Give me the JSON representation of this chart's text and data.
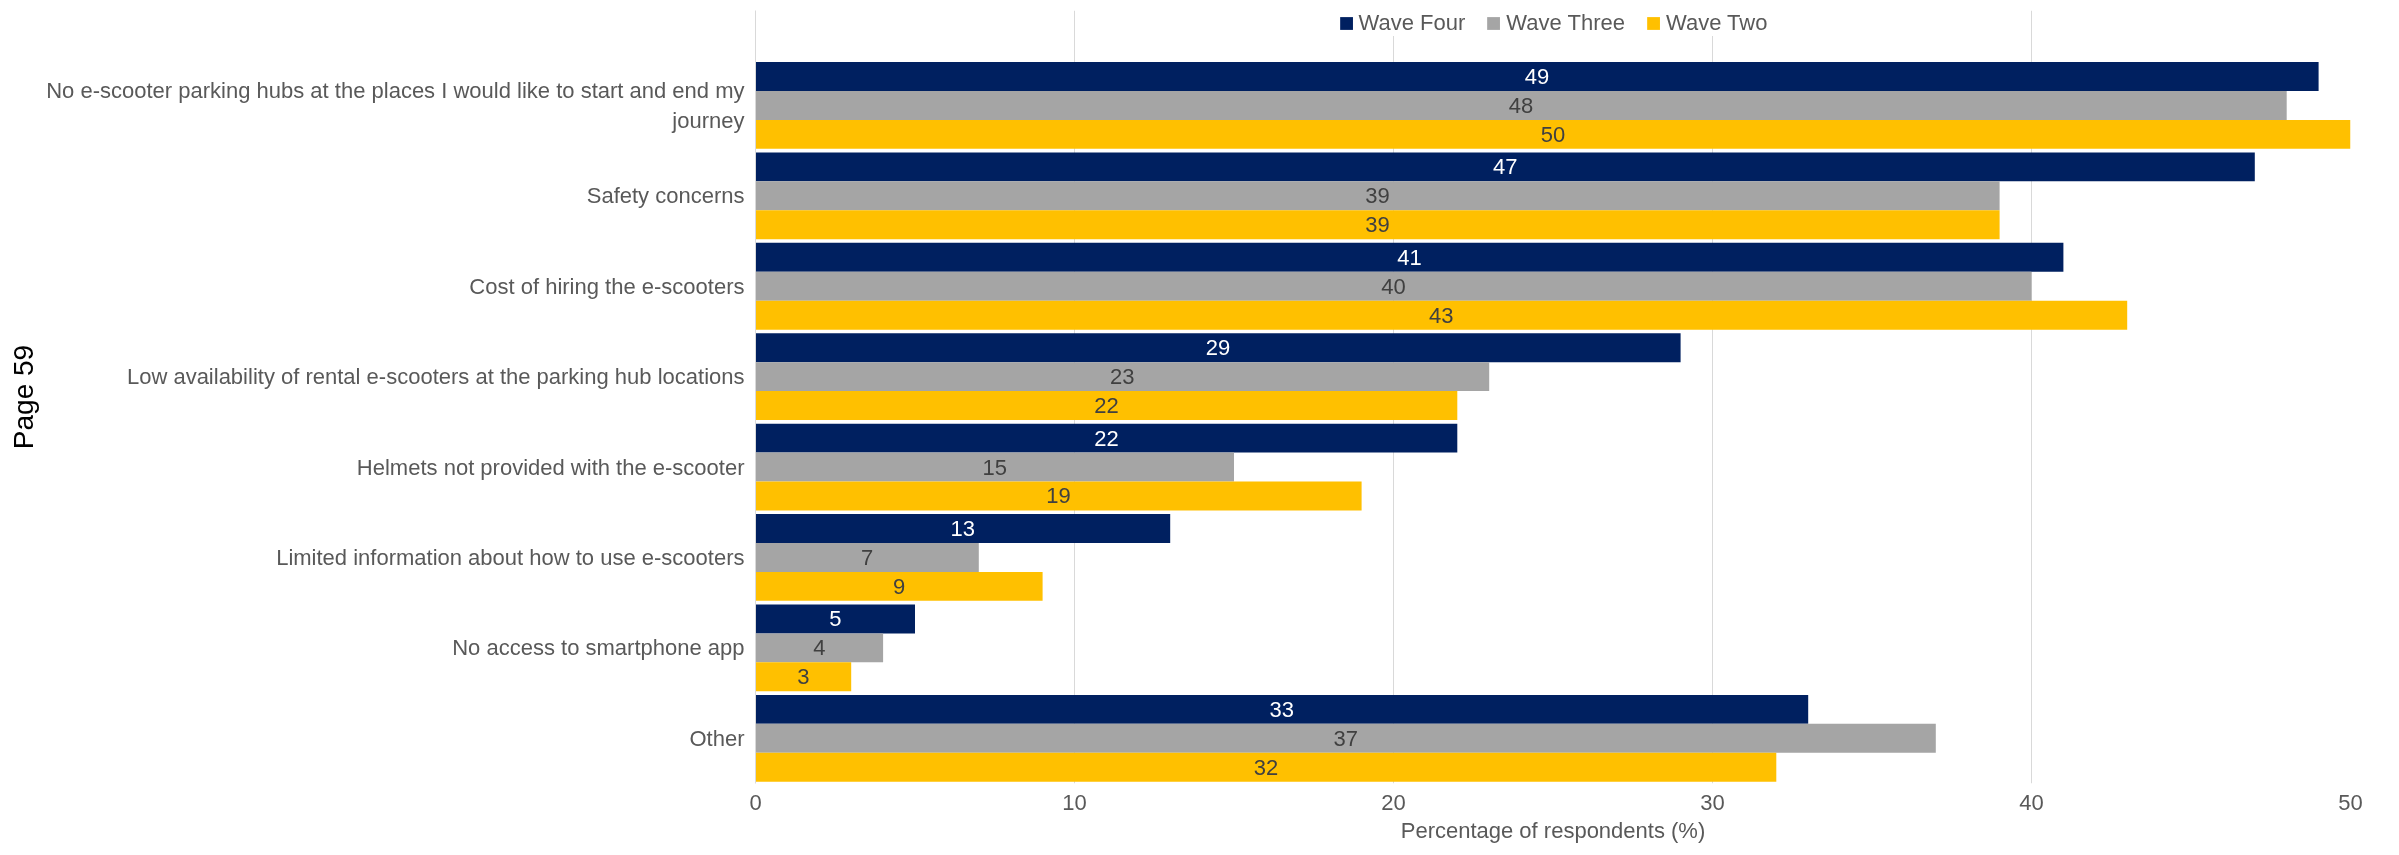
{
  "chart_data": {
    "type": "bar",
    "orientation": "horizontal",
    "categories": [
      "No e-scooter parking hubs at the places I would like to start and end my journey",
      "Safety concerns ",
      "Cost of hiring the e-scooters",
      "Low availability of rental e-scooters at the parking hub locations",
      "Helmets not provided with the e-scooter",
      "Limited information about how to use e-scooters",
      "No access to smartphone app",
      "Other"
    ],
    "series": [
      {
        "name": "Wave Four",
        "color": "#002060",
        "values": [
          49,
          47,
          41,
          29,
          22,
          13,
          5,
          33
        ]
      },
      {
        "name": "Wave Three",
        "color": "#a5a5a5",
        "values": [
          48,
          39,
          40,
          23,
          15,
          7,
          4,
          37
        ]
      },
      {
        "name": "Wave Two",
        "color": "#ffc000",
        "values": [
          50,
          39,
          43,
          22,
          19,
          9,
          3,
          32
        ]
      }
    ],
    "xlabel": "Percentage of respondents (%)",
    "xlim": [
      0,
      50
    ],
    "xticks": [
      0,
      10,
      20,
      30,
      40,
      50
    ],
    "grid": "x",
    "legend": "top",
    "data_labels": true,
    "annotations": [
      "Page 59"
    ]
  }
}
